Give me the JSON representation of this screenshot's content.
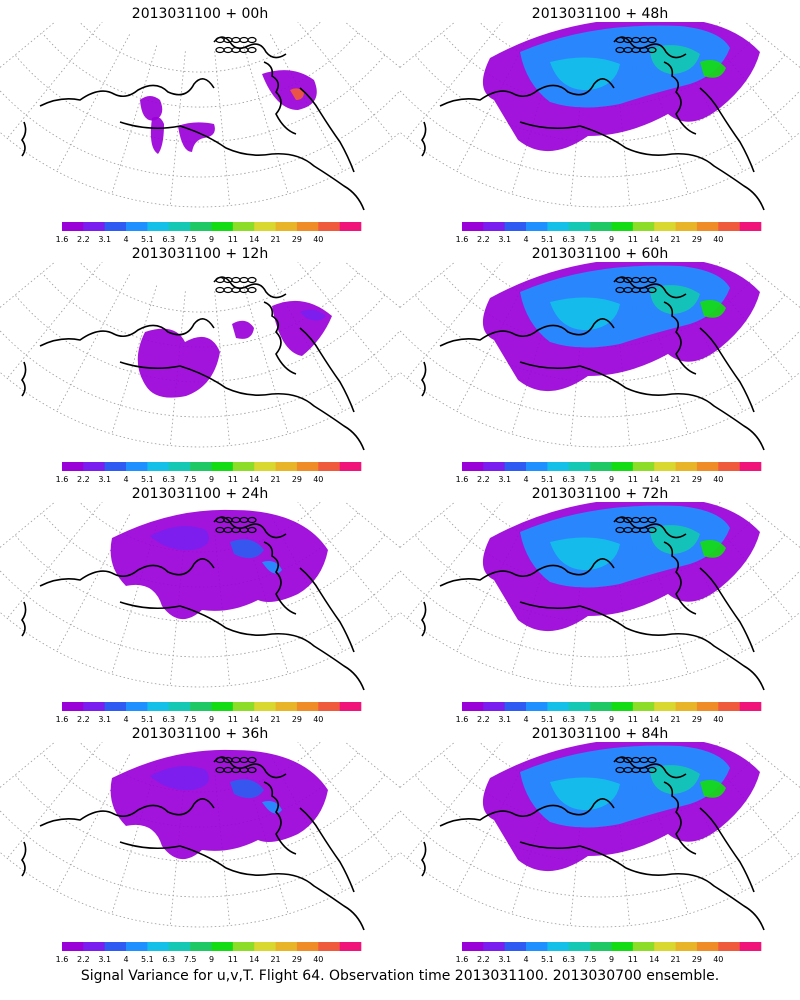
{
  "colorbar": {
    "labels": [
      "1.6",
      "2.2",
      "3.1",
      "4",
      "5.1",
      "6.3",
      "7.5",
      "9",
      "11",
      "14",
      "21",
      "29",
      "40"
    ],
    "colors": [
      "#9a00d8",
      "#7a1ef0",
      "#2e5cf2",
      "#1e90ff",
      "#14c0e8",
      "#14c8b4",
      "#1ec864",
      "#14dc14",
      "#8cdc28",
      "#d8d830",
      "#e8b428",
      "#f08c28",
      "#f05a3c",
      "#f0147a"
    ]
  },
  "panels": [
    {
      "id": "p00",
      "title": "2013031100 + 00h",
      "lead_hours": 0,
      "coverage": "sparse"
    },
    {
      "id": "p48",
      "title": "2013031100 + 48h",
      "lead_hours": 48,
      "coverage": "wide"
    },
    {
      "id": "p12",
      "title": "2013031100 + 12h",
      "lead_hours": 12,
      "coverage": "light"
    },
    {
      "id": "p60",
      "title": "2013031100 + 60h",
      "lead_hours": 60,
      "coverage": "wide"
    },
    {
      "id": "p24",
      "title": "2013031100 + 24h",
      "lead_hours": 24,
      "coverage": "moderate"
    },
    {
      "id": "p72",
      "title": "2013031100 + 72h",
      "lead_hours": 72,
      "coverage": "wide"
    },
    {
      "id": "p36",
      "title": "2013031100 + 36h",
      "lead_hours": 36,
      "coverage": "moderate"
    },
    {
      "id": "p84",
      "title": "2013031100 + 84h",
      "lead_hours": 84,
      "coverage": "wide"
    }
  ],
  "footer": "Signal Variance for u,v,T. Flight 64. Observation time 2013031100. 2013030700 ensemble."
}
